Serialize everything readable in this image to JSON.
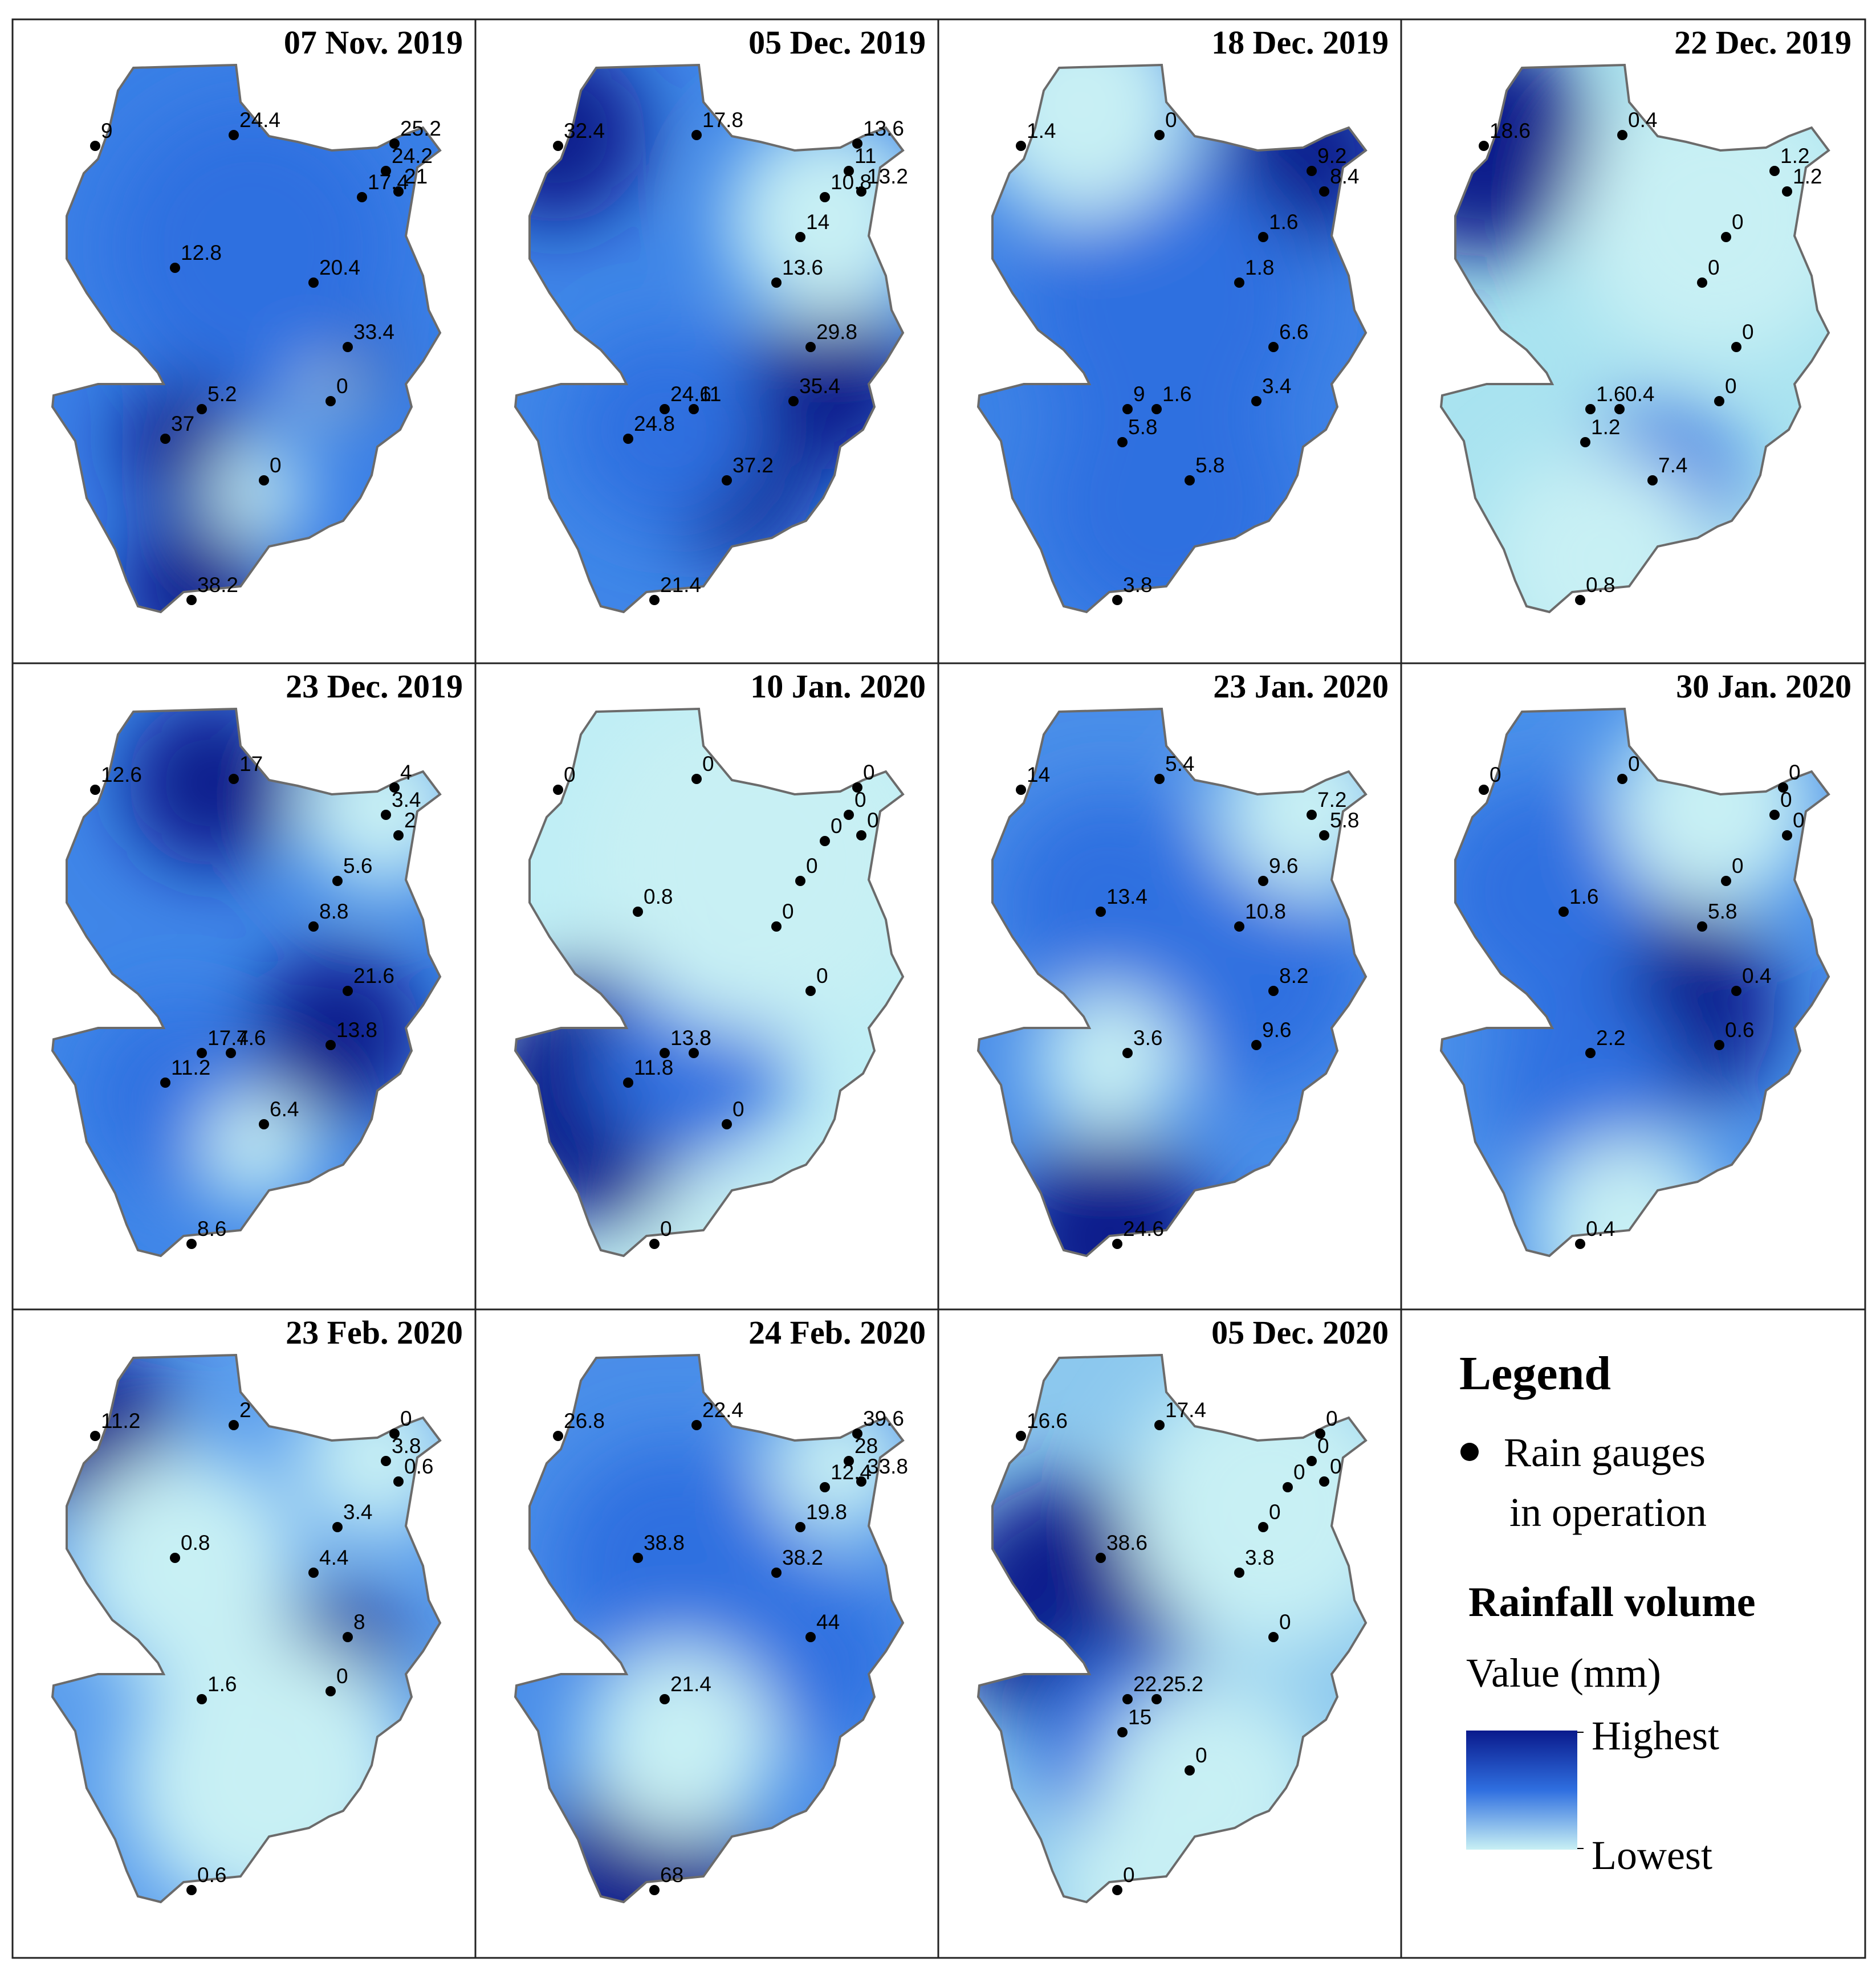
{
  "colors": {
    "highest": "#0a1a8c",
    "mid": "#2f6fe0",
    "lowest": "#c8f0f4",
    "outline": "#6b6b6b",
    "dot": "#000000"
  },
  "panels": [
    {
      "title": "07 Nov. 2019",
      "labels": [
        "9",
        "24.4",
        "25.2",
        "24.2",
        "21",
        "17.4",
        "12.8",
        "20.4",
        "33.4",
        "0",
        "5.2",
        "37",
        "0",
        "38.2"
      ]
    },
    {
      "title": "05 Dec. 2019",
      "labels": [
        "32.4",
        "17.8",
        "13.6",
        "11",
        "13.2",
        "10.8",
        "14",
        "13.6",
        "29.8",
        "35.4",
        "24.6",
        "11",
        "24.8",
        "37.2",
        "21.4"
      ]
    },
    {
      "title": "18 Dec. 2019",
      "labels": [
        "1.4",
        "0",
        "9.2",
        "8.4",
        "1.6",
        "1.8",
        "6.6",
        "3.4",
        "9",
        "1.6",
        "5.8",
        "5.8",
        "3.8"
      ]
    },
    {
      "title": "22 Dec. 2019",
      "labels": [
        "18.6",
        "0.4",
        "1.2",
        "1.2",
        "0",
        "0",
        "0",
        "0",
        "1.6",
        "0.4",
        "1.2",
        "7.4",
        "0.8"
      ]
    },
    {
      "title": "23 Dec. 2019",
      "labels": [
        "12.6",
        "17",
        "4",
        "3.4",
        "2",
        "5.6",
        "8.8",
        "21.6",
        "13.8",
        "17.4",
        "7.6",
        "11.2",
        "6.4",
        "8.6"
      ]
    },
    {
      "title": "10 Jan. 2020",
      "labels": [
        "0",
        "0",
        "0",
        "0",
        "0",
        "0",
        "0",
        "0.8",
        "0",
        "0",
        "13.8",
        "8",
        "11.8",
        "0",
        "0"
      ]
    },
    {
      "title": "23 Jan. 2020",
      "labels": [
        "14",
        "5.4",
        "7.2",
        "5.8",
        "9.6",
        "13.4",
        "10.8",
        "8.2",
        "9.6",
        "3.6",
        "24.6"
      ]
    },
    {
      "title": "30 Jan. 2020",
      "labels": [
        "0",
        "0",
        "0",
        "0",
        "0",
        "0",
        "1.6",
        "5.8",
        "0.4",
        "0.6",
        "2.2",
        "0.4"
      ]
    },
    {
      "title": "23 Feb. 2020",
      "labels": [
        "11.2",
        "2",
        "0",
        "3.8",
        "0.6",
        "3.4",
        "0.8",
        "4.4",
        "8",
        "0",
        "1.6",
        "0.6"
      ]
    },
    {
      "title": "24 Feb. 2020",
      "labels": [
        "26.8",
        "22.4",
        "39.6",
        "28",
        "33.8",
        "12.4",
        "19.8",
        "38.8",
        "38.2",
        "44",
        "21.4",
        "68"
      ]
    },
    {
      "title": "05 Dec. 2020",
      "labels": [
        "16.6",
        "17.4",
        "0",
        "0",
        "0",
        "0",
        "0",
        "38.6",
        "3.8",
        "0",
        "22.2",
        "25.2",
        "15",
        "0",
        "0"
      ]
    }
  ],
  "legend": {
    "title": "Legend",
    "gauge_line1": "Rain gauges",
    "gauge_line2": "in operation",
    "section": "Rainfall volume",
    "value_unit": "Value (mm)",
    "highest": "Highest",
    "lowest": "Lowest"
  }
}
